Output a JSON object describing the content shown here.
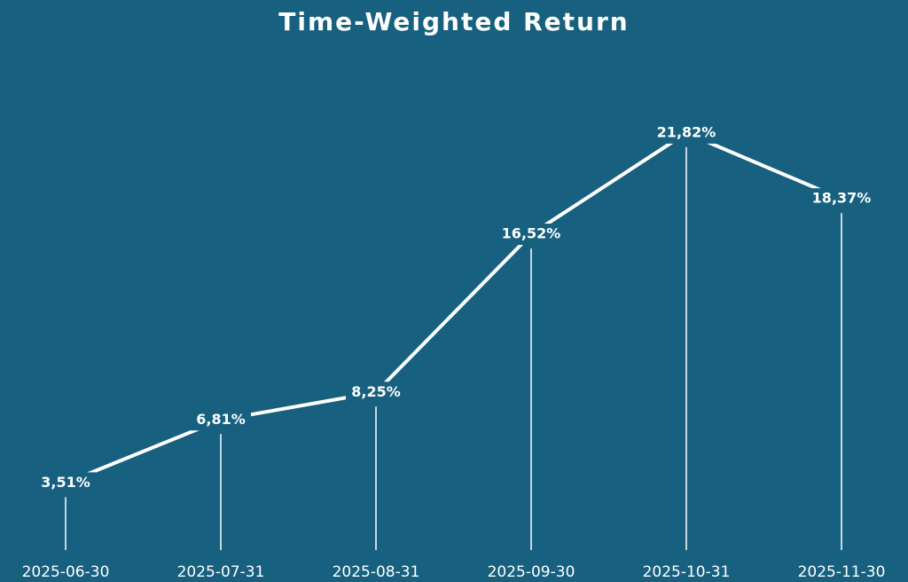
{
  "chart_data": {
    "type": "line",
    "title": "Time-Weighted Return",
    "categories": [
      "2025-06-30",
      "2025-07-31",
      "2025-08-31",
      "2025-09-30",
      "2025-10-31",
      "2025-11-30"
    ],
    "values": [
      3.51,
      6.81,
      8.25,
      16.52,
      21.82,
      18.37
    ],
    "value_labels": [
      "3,51%",
      "6,81%",
      "8,25%",
      "16,52%",
      "21,82%",
      "18,37%"
    ],
    "color": "#ffffff",
    "ylim": [
      0,
      22
    ],
    "grid": false
  }
}
